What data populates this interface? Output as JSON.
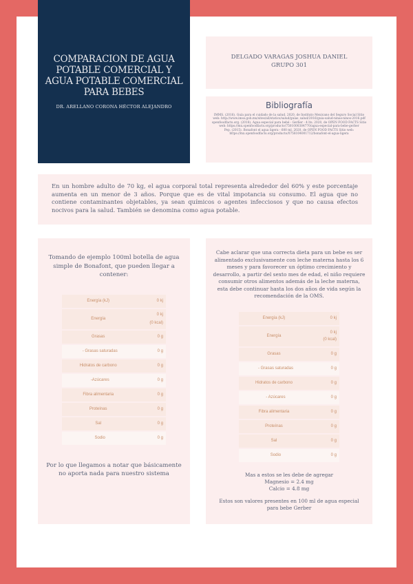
{
  "colors": {
    "border": "#E46864",
    "title_bg": "#14304F",
    "panel": "#FCEEEE",
    "text": "#5A6378",
    "table_text": "#C78E68"
  },
  "header": {
    "title": "COMPARACION DE AGUA POTABLE COMERCIAL Y AGUA POTABLE COMERCIAL PARA BEBES",
    "subtitle": "DR. ARELLANO CORONA HÉCTOR ALEJANDRO"
  },
  "author": {
    "name": "DELGADO VARAGAS JOSHUA DANIEL",
    "group": "GRUPO 301"
  },
  "bibliography": {
    "heading": "Bibliografía",
    "entries": [
      "IMMS. (2016). Guía para el cuidado de la salud. 2020, de Instituto Mexicano del Seguro Social Sitio web: http://www.imss.gob.mx/sites/all/statics/salud/guias_salud/2016/guia-salud-ninas-ninos-2016.pdf",
      "openfoodfacts.org. (2018). Agua especial para bebé - Gerber - 4 lts. 2020, de OPEN FOOD FACTS Sitio web: https://mx.openfoodfacts.org/producto/7501000384770/agua-especial-para-bebe-gerber",
      "Pep. (2015). Bonafont el agua ligera - 600 ml. 2020, de OPEN FOOD FACTS Sitio web: https://mx.openfoodfacts.org/producto/0758104001712/bonafont-el-agua-ligera"
    ]
  },
  "intro": "En un hombre adulto de 70 kg, el agua corporal total representa alrededor del 60% y este porcentaje aumenta en un menor de 3 años. Porque que es de vital impotancia su consumo. El agua que no contiene contaminantes objetables, ya sean químicos o agentes infecciosos y que no causa efectos nocivos para la salud. También se denomina como agua potable.",
  "left": {
    "intro": "Tomando de ejemplo  100ml botella de agua simple de Bonafont, que pueden llegar a contener:",
    "table": [
      {
        "label": "Energía (kJ)",
        "value": "0 kj"
      },
      {
        "label": "Energía",
        "value": "0 kj",
        "value2": "(0 kcal)"
      },
      {
        "label": "Grasas",
        "value": "0 g"
      },
      {
        "label": "- Grasas saturadas",
        "value": "0 g"
      },
      {
        "label": "Hidratos de carbono",
        "value": "0 g"
      },
      {
        "label": "-Azúcares",
        "value": "0 g"
      },
      {
        "label": "Fibra alimentaria",
        "value": "0 g"
      },
      {
        "label": "Proteínas",
        "value": "0 g"
      },
      {
        "label": "Sal",
        "value": "0 g"
      },
      {
        "label": "Sodio",
        "value": "0 g"
      }
    ],
    "footer": "Por lo que llegamos a notar que básicamente no aporta nada para nuestro sistema"
  },
  "right": {
    "intro": "Cabe aclarar que una correcta dieta para un bebe es ser alimentado exclusivamente con leche materna hasta los 6 meses y para favorecer un óptimo crecimiento y desarrollo, a partir del sexto mes de edad, el niño requiere consumir otros alimentos además de la leche materna, esta debe continuar hasta los dos años de vida según la recomendación de la OMS.",
    "table": [
      {
        "label": "Energía (kJ)",
        "value": "0 kj"
      },
      {
        "label": "Energía",
        "value": "0 kj",
        "value2": "(0 kcal)"
      },
      {
        "label": "Grasas",
        "value": "0 g"
      },
      {
        "label": "- Grasas saturadas",
        "value": "0 g"
      },
      {
        "label": "Hidratos de carbono",
        "value": "0 g"
      },
      {
        "label": "- Azúcares",
        "value": "0 g"
      },
      {
        "label": "Fibra alimentaria",
        "value": "0 g"
      },
      {
        "label": "Proteínas",
        "value": "0 g"
      },
      {
        "label": "Sal",
        "value": "0 g"
      },
      {
        "label": "Sodio",
        "value": "0 g"
      }
    ],
    "extra_line1": "Mas a estos se les debe de agregar",
    "extra_line2": "Magnesio = 2.4 mg",
    "extra_line3": "Calcio = 4.8 mg",
    "footer": "Estos son valores presentes en 100 ml de agua especial para bebe Gerber"
  }
}
